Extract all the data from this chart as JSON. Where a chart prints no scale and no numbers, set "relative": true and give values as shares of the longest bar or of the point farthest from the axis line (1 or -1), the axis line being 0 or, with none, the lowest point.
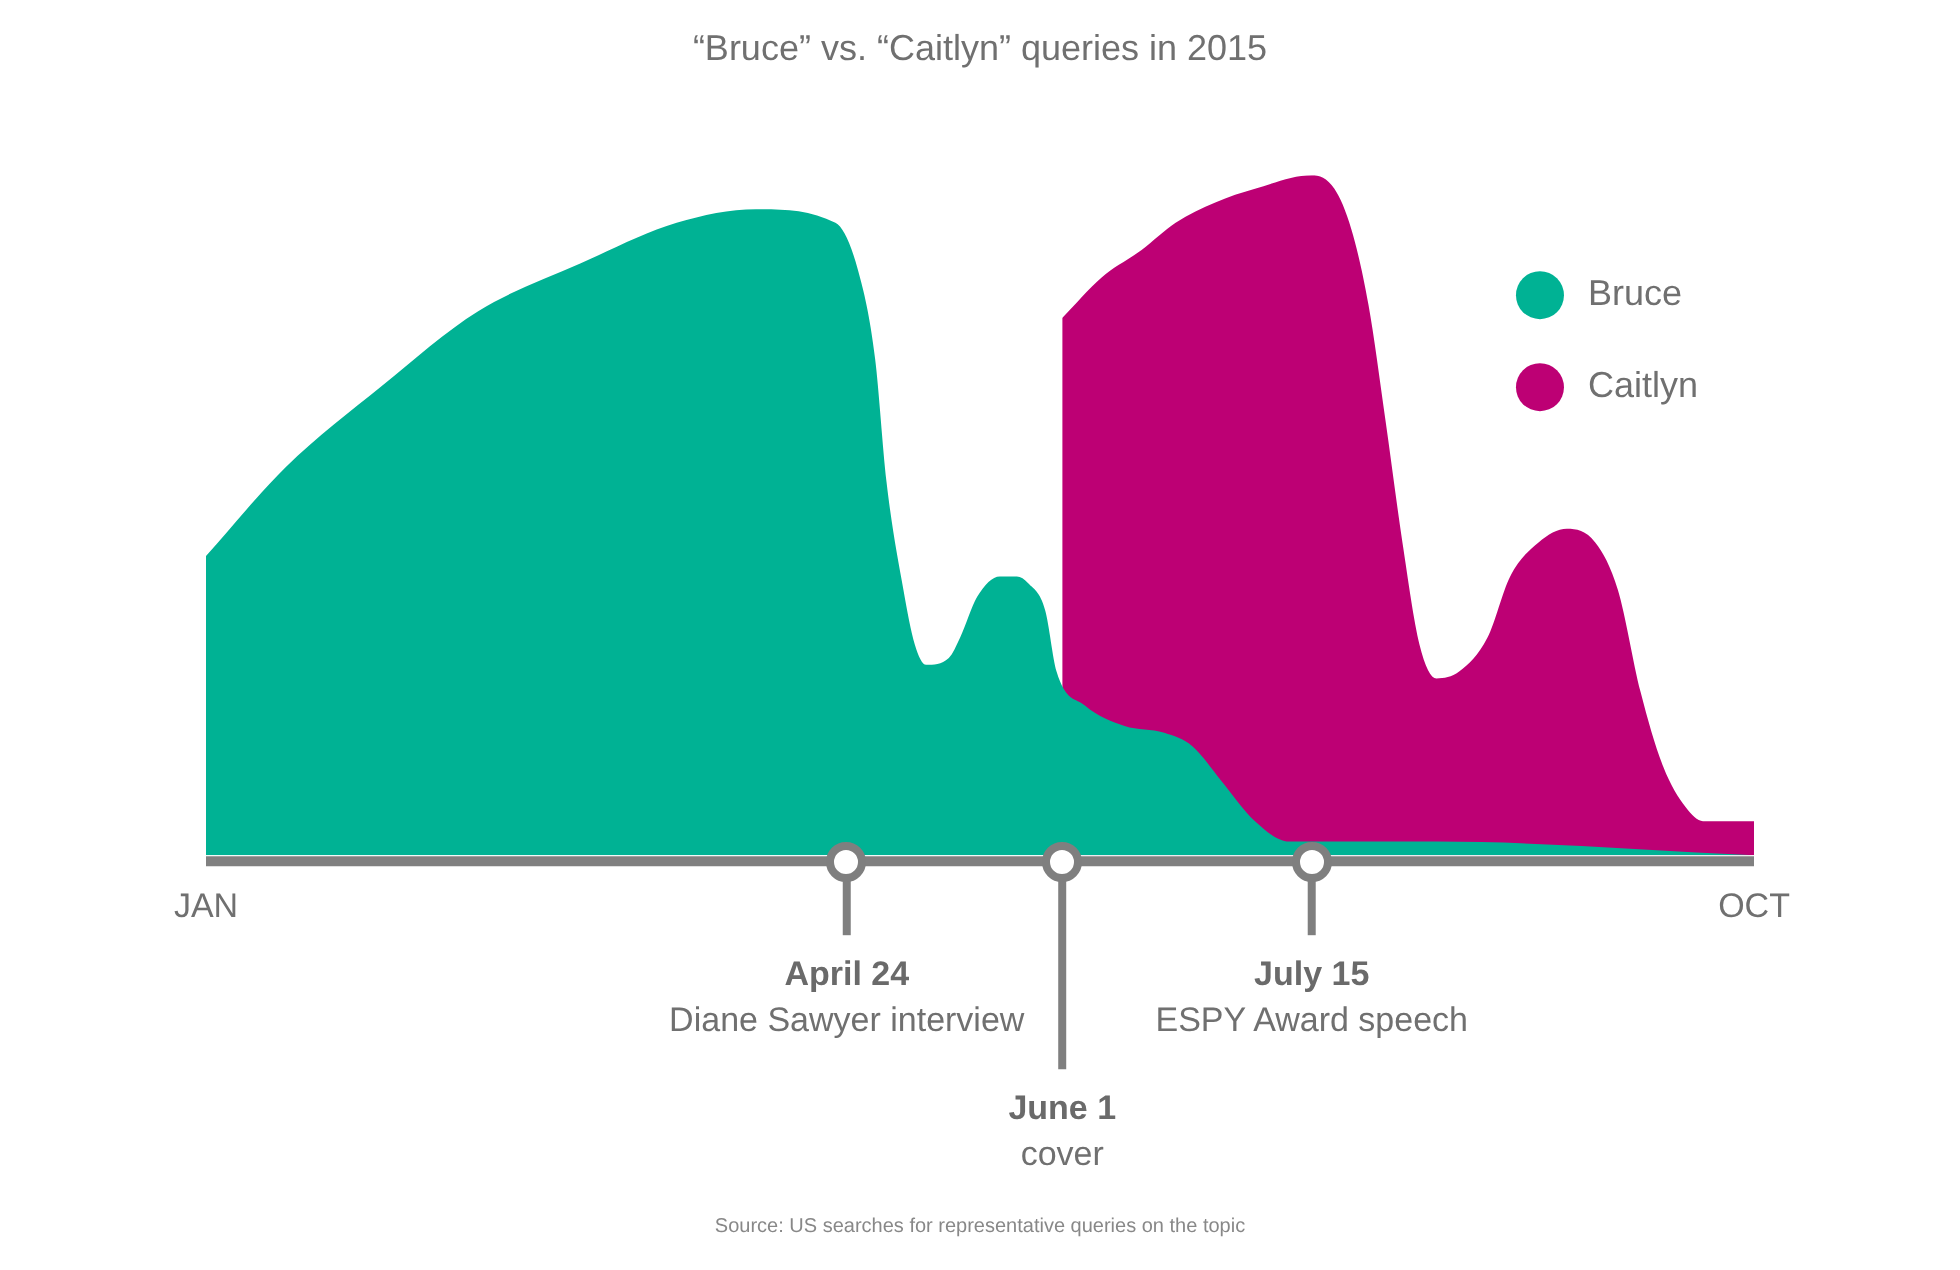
{
  "chart_data": {
    "type": "area",
    "title": "“Bruce” vs. “Caitlyn” queries in 2015",
    "relative": true,
    "xlim": [
      "2015-01-01",
      "2015-10-01"
    ],
    "xticks": [
      {
        "value": "2015-01-01",
        "label": "JAN"
      },
      {
        "value": "2015-10-01",
        "label": "OCT"
      }
    ],
    "legend": "top right",
    "series": [
      {
        "name": "Bruce",
        "color": "#00b294",
        "x": [
          "2015-01-01",
          "2015-01-15",
          "2015-02-01",
          "2015-02-18",
          "2015-03-08",
          "2015-03-25",
          "2015-04-08",
          "2015-04-22",
          "2015-04-26",
          "2015-04-29",
          "2015-05-01",
          "2015-05-04",
          "2015-05-06",
          "2015-05-08",
          "2015-05-12",
          "2015-05-14",
          "2015-05-17",
          "2015-05-21",
          "2015-05-24",
          "2015-05-26",
          "2015-05-29",
          "2015-05-31",
          "2015-06-05",
          "2015-06-12",
          "2015-06-19",
          "2015-06-24",
          "2015-06-29",
          "2015-07-05",
          "2015-07-11",
          "2015-08-06",
          "2015-10-01"
        ],
        "values": [
          0.44,
          0.57,
          0.69,
          0.8,
          0.87,
          0.93,
          0.95,
          0.93,
          0.86,
          0.73,
          0.55,
          0.39,
          0.31,
          0.28,
          0.29,
          0.32,
          0.38,
          0.41,
          0.41,
          0.4,
          0.36,
          0.27,
          0.22,
          0.19,
          0.18,
          0.16,
          0.11,
          0.05,
          0.02,
          0.02,
          0
        ]
      },
      {
        "name": "Caitlyn",
        "color": "#bd0074",
        "x": [
          "2015-06-01",
          "2015-06-08",
          "2015-06-15",
          "2015-06-21",
          "2015-06-28",
          "2015-07-05",
          "2015-07-15",
          "2015-07-19",
          "2015-07-22",
          "2015-07-25",
          "2015-07-28",
          "2015-07-31",
          "2015-08-03",
          "2015-08-06",
          "2015-08-10",
          "2015-08-15",
          "2015-08-19",
          "2015-08-24",
          "2015-08-29",
          "2015-09-03",
          "2015-09-07",
          "2015-09-11",
          "2015-09-15",
          "2015-09-19",
          "2015-09-22",
          "2015-10-01"
        ],
        "values": [
          0.79,
          0.85,
          0.89,
          0.93,
          0.96,
          0.98,
          1,
          0.98,
          0.92,
          0.81,
          0.64,
          0.46,
          0.31,
          0.26,
          0.27,
          0.32,
          0.41,
          0.46,
          0.48,
          0.46,
          0.39,
          0.24,
          0.13,
          0.07,
          0.05,
          0.05
        ]
      }
    ],
    "ref_lines": [
      {
        "axis": "x",
        "value": "2015-04-24",
        "label": "April 24",
        "color": "#7f7f7f"
      },
      {
        "axis": "x",
        "value": "2015-06-01",
        "label": "June 1",
        "color": "#7f7f7f"
      },
      {
        "axis": "x",
        "value": "2015-07-15",
        "label": "July 15",
        "color": "#7f7f7f"
      }
    ],
    "annotations": [
      "Diane Sawyer interview",
      "cover",
      "ESPY Award speech",
      "Source: US searches for representative queries on the topic"
    ]
  }
}
